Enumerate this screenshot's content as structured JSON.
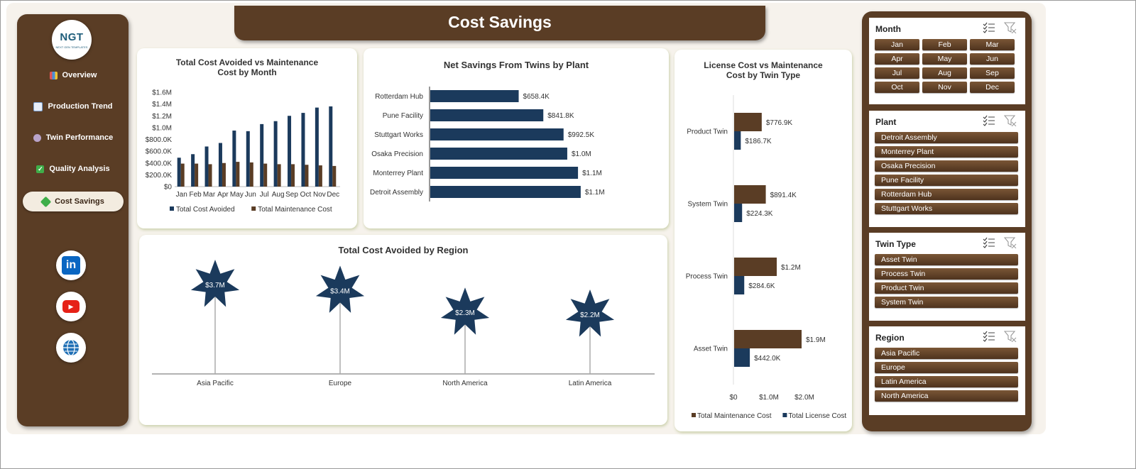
{
  "page": {
    "title": "Cost Savings"
  },
  "logo": {
    "text": "NGT",
    "tagline": "NEXT GEN TEMPLATES"
  },
  "sidebar": {
    "items": [
      {
        "label": "Overview",
        "icon": "chart-icon",
        "active": false
      },
      {
        "label": "Production Trend",
        "icon": "trend-icon",
        "active": false
      },
      {
        "label": "Twin Performance",
        "icon": "gear-icon",
        "active": false
      },
      {
        "label": "Quality Analysis",
        "icon": "check-icon",
        "active": false
      },
      {
        "label": "Cost Savings",
        "icon": "money-icon",
        "active": true
      }
    ],
    "social": [
      {
        "name": "linkedin-icon",
        "label": "in",
        "color": "#0a66c2"
      },
      {
        "name": "youtube-icon",
        "label": "▶",
        "color": "#e62117"
      },
      {
        "name": "globe-icon",
        "label": "",
        "color": "#1f6fb5"
      }
    ]
  },
  "colors": {
    "navy": "#1b3a5c",
    "brown": "#5a3d25",
    "chip": "#6b4a2e"
  },
  "chart_data": [
    {
      "type": "bar",
      "title": "Total Cost Avoided vs Maintenance Cost by Month",
      "title_lines": [
        "Total Cost Avoided vs Maintenance",
        "Cost by Month"
      ],
      "categories": [
        "Jan",
        "Feb",
        "Mar",
        "Apr",
        "May",
        "Jun",
        "Jul",
        "Aug",
        "Sep",
        "Oct",
        "Nov",
        "Dec"
      ],
      "series": [
        {
          "name": "Total Cost Avoided",
          "color": "#1b3a5c",
          "values": [
            490000,
            550000,
            680000,
            740000,
            950000,
            940000,
            1060000,
            1110000,
            1200000,
            1250000,
            1340000,
            1360000
          ]
        },
        {
          "name": "Total Maintenance Cost",
          "color": "#5a3d25",
          "values": [
            390000,
            390000,
            380000,
            400000,
            420000,
            410000,
            390000,
            380000,
            380000,
            370000,
            360000,
            350000
          ]
        }
      ],
      "yticks": [
        "$0",
        "$200.0K",
        "$400.0K",
        "$600.0K",
        "$800.0K",
        "$1.0M",
        "$1.2M",
        "$1.4M",
        "$1.6M"
      ],
      "ylim": [
        0,
        1600000
      ],
      "legend": "bottom"
    },
    {
      "type": "bar",
      "orientation": "horizontal",
      "title": "Net Savings From Twins by Plant",
      "categories": [
        "Rotterdam Hub",
        "Pune Facility",
        "Stuttgart Works",
        "Osaka Precision",
        "Monterrey Plant",
        "Detroit Assembly"
      ],
      "values": [
        658400,
        841800,
        992500,
        1020000,
        1100000,
        1120000
      ],
      "labels": [
        "$658.4K",
        "$841.8K",
        "$992.5K",
        "$1.0M",
        "$1.1M",
        "$1.1M"
      ],
      "color": "#1b3a5c",
      "xlim": [
        0,
        1200000
      ]
    },
    {
      "type": "bar",
      "orientation": "horizontal",
      "title": "License Cost vs Maintenance Cost by Twin Type",
      "title_lines": [
        "License Cost vs Maintenance",
        "Cost by Twin Type"
      ],
      "categories": [
        "Product Twin",
        "System Twin",
        "Process Twin",
        "Asset Twin"
      ],
      "series": [
        {
          "name": "Total Maintenance Cost",
          "color": "#5a3d25",
          "values": [
            776900,
            891400,
            1200000,
            1900000
          ],
          "labels": [
            "$776.9K",
            "$891.4K",
            "$1.2M",
            "$1.9M"
          ]
        },
        {
          "name": "Total License Cost",
          "color": "#1b3a5c",
          "values": [
            186700,
            224300,
            284600,
            442000
          ],
          "labels": [
            "$186.7K",
            "$224.3K",
            "$284.6K",
            "$442.0K"
          ]
        }
      ],
      "xticks": [
        "$0",
        "$1.0M",
        "$2.0M"
      ],
      "xlim": [
        0,
        2000000
      ],
      "legend": "bottom"
    },
    {
      "type": "scatter",
      "style": "star-lollipop",
      "title": "Total Cost Avoided by Region",
      "categories": [
        "Asia Pacific",
        "Europe",
        "North America",
        "Latin America"
      ],
      "values": [
        3700000,
        3400000,
        2300000,
        2200000
      ],
      "labels": [
        "$3.7M",
        "$3.4M",
        "$2.3M",
        "$2.2M"
      ],
      "color": "#1b3a5c"
    }
  ],
  "slicers": [
    {
      "title": "Month",
      "items": [
        "Jan",
        "Feb",
        "Mar",
        "Apr",
        "May",
        "Jun",
        "Jul",
        "Aug",
        "Sep",
        "Oct",
        "Nov",
        "Dec"
      ]
    },
    {
      "title": "Plant",
      "items": [
        "Detroit Assembly",
        "Monterrey Plant",
        "Osaka Precision",
        "Pune Facility",
        "Rotterdam Hub",
        "Stuttgart Works"
      ]
    },
    {
      "title": "Twin Type",
      "items": [
        "Asset Twin",
        "Process Twin",
        "Product Twin",
        "System Twin"
      ]
    },
    {
      "title": "Region",
      "items": [
        "Asia Pacific",
        "Europe",
        "Latin America",
        "North America"
      ]
    }
  ]
}
